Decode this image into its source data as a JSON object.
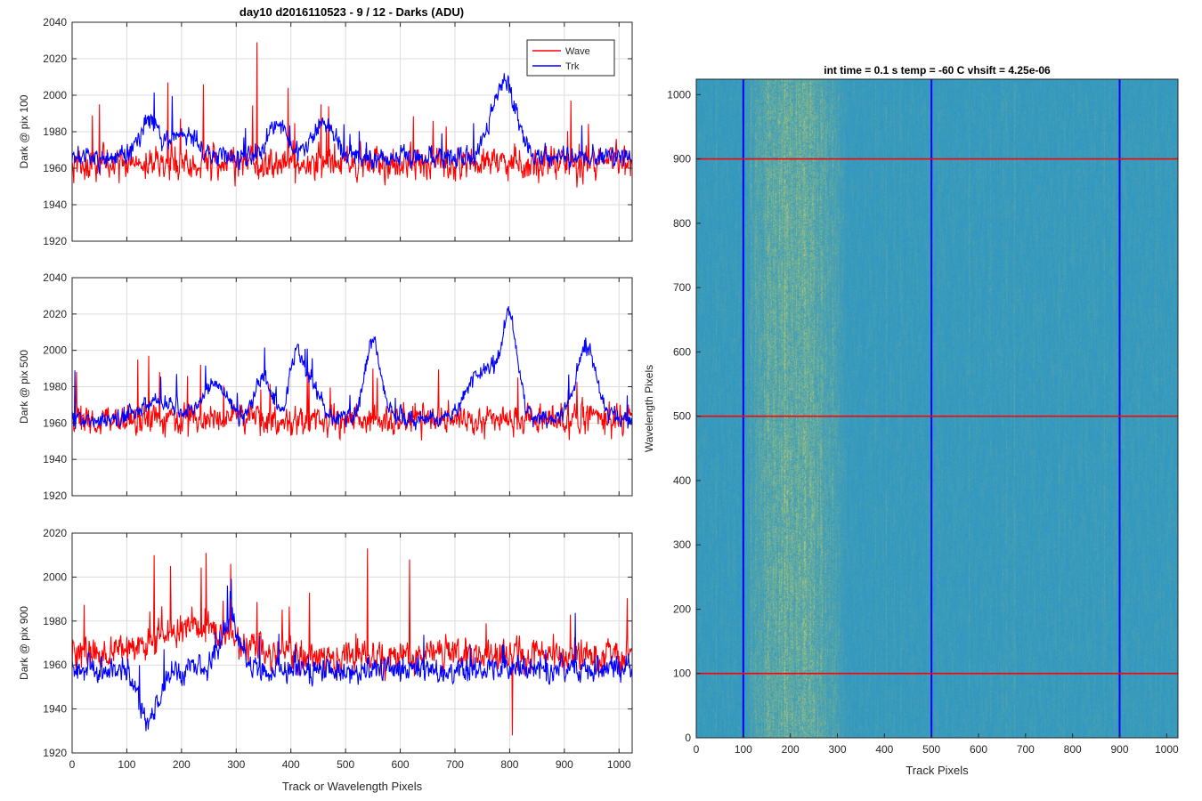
{
  "figure": {
    "title": "day10 d2016110523 - 9 / 12 - Darks (ADU)"
  },
  "colors": {
    "wave": "#ff0000",
    "trk": "#0000ff",
    "heatmap_base": "#1a8fd0",
    "heatmap_hot": "#c8d060",
    "grid": "#dcdcdc"
  },
  "chart_data": [
    {
      "id": "plot1",
      "type": "line",
      "title": "",
      "xlabel": "",
      "ylabel": "Dark @ pix 100",
      "xlim": [
        0,
        1024
      ],
      "ylim": [
        1920,
        2040
      ],
      "xticks": [],
      "yticks": [
        1920,
        1940,
        1960,
        1980,
        2000,
        2020,
        2040
      ],
      "grid": true,
      "legend": {
        "location": "top-right",
        "entries": [
          "Wave",
          "Trk"
        ]
      },
      "series": [
        {
          "name": "Wave",
          "color": "#ff0000",
          "baseline": 1963,
          "noise": 13,
          "spikes": [
            [
              50,
              1995
            ],
            [
              175,
              2007
            ],
            [
              240,
              2006
            ],
            [
              338,
              2029
            ],
            [
              395,
              2004
            ],
            [
              455,
              1995
            ],
            [
              660,
              1986
            ]
          ],
          "bumps": []
        },
        {
          "name": "Trk",
          "color": "#0000ff",
          "baseline": 1966,
          "noise": 8,
          "spikes": [],
          "bumps": [
            [
              140,
              1988,
              25
            ],
            [
              205,
              1980,
              30
            ],
            [
              375,
              1985,
              25
            ],
            [
              460,
              1985,
              30
            ],
            [
              790,
              2008,
              30
            ]
          ]
        }
      ]
    },
    {
      "id": "plot2",
      "type": "line",
      "title": "",
      "xlabel": "",
      "ylabel": "Dark @ pix 500",
      "xlim": [
        0,
        1024
      ],
      "ylim": [
        1920,
        2040
      ],
      "xticks": [],
      "yticks": [
        1920,
        1940,
        1960,
        1980,
        2000,
        2020,
        2040
      ],
      "grid": true,
      "legend": null,
      "series": [
        {
          "name": "Wave",
          "color": "#ff0000",
          "baseline": 1962,
          "noise": 12,
          "spikes": [
            [
              120,
              1995
            ],
            [
              140,
              1997
            ],
            [
              160,
              1988
            ],
            [
              235,
              1992
            ],
            [
              550,
              1990
            ],
            [
              815,
              1985
            ]
          ],
          "bumps": []
        },
        {
          "name": "Trk",
          "color": "#0000ff",
          "baseline": 1963,
          "noise": 7,
          "spikes": [
            [
              5,
              1989
            ],
            [
              420,
              1997
            ]
          ],
          "bumps": [
            [
              155,
              1972,
              40
            ],
            [
              260,
              1982,
              30
            ],
            [
              350,
              1985,
              20
            ],
            [
              410,
              1997,
              18
            ],
            [
              440,
              1980,
              20
            ],
            [
              550,
              2005,
              20
            ],
            [
              750,
              1990,
              35
            ],
            [
              800,
              2018,
              20
            ],
            [
              940,
              2002,
              25
            ]
          ]
        }
      ]
    },
    {
      "id": "plot3",
      "type": "line",
      "title": "",
      "xlabel": "Track or Wavelength Pixels",
      "ylabel": "Dark @ pix 900",
      "xlim": [
        0,
        1024
      ],
      "ylim": [
        1920,
        2020
      ],
      "xticks": [
        0,
        100,
        200,
        300,
        400,
        500,
        600,
        700,
        800,
        900,
        1000
      ],
      "yticks": [
        1920,
        1940,
        1960,
        1980,
        2000,
        2020
      ],
      "grid": true,
      "legend": null,
      "series": [
        {
          "name": "Wave",
          "color": "#ff0000",
          "baseline": 1964,
          "noise": 11,
          "spikes": [
            [
              150,
              2010
            ],
            [
              180,
              2005
            ],
            [
              245,
              2011
            ],
            [
              290,
              2006
            ],
            [
              540,
              2013
            ],
            [
              617,
              2008
            ],
            [
              805,
              1928
            ]
          ],
          "bumps": [
            [
              220,
              1978,
              90
            ]
          ]
        },
        {
          "name": "Trk",
          "color": "#0000ff",
          "baseline": 1958,
          "noise": 8,
          "spikes": [
            [
              290,
              1990
            ]
          ],
          "bumps": [
            [
              140,
              1934,
              25
            ],
            [
              290,
              1980,
              25
            ]
          ]
        }
      ]
    },
    {
      "id": "heatmap",
      "type": "heatmap",
      "title": "int time = 0.1 s   temp = -60 C   vhsift = 4.25e-06",
      "xlabel": "Track Pixels",
      "ylabel": "Wavelength Pixels",
      "xlim": [
        0,
        1024
      ],
      "ylim": [
        0,
        1024
      ],
      "xticks": [
        0,
        100,
        200,
        300,
        400,
        500,
        600,
        700,
        800,
        900,
        1000
      ],
      "yticks": [
        0,
        100,
        200,
        300,
        400,
        500,
        600,
        700,
        800,
        900,
        1000
      ],
      "grid": false,
      "hot_columns": [
        [
          100,
          320,
          0.9
        ]
      ],
      "vlines": [
        {
          "x": 100,
          "color": "#0000ff"
        },
        {
          "x": 500,
          "color": "#0000ff"
        },
        {
          "x": 900,
          "color": "#0000ff"
        }
      ],
      "hlines": [
        {
          "y": 100,
          "color": "#ff0000"
        },
        {
          "y": 500,
          "color": "#ff0000"
        },
        {
          "y": 900,
          "color": "#ff0000"
        }
      ]
    }
  ]
}
